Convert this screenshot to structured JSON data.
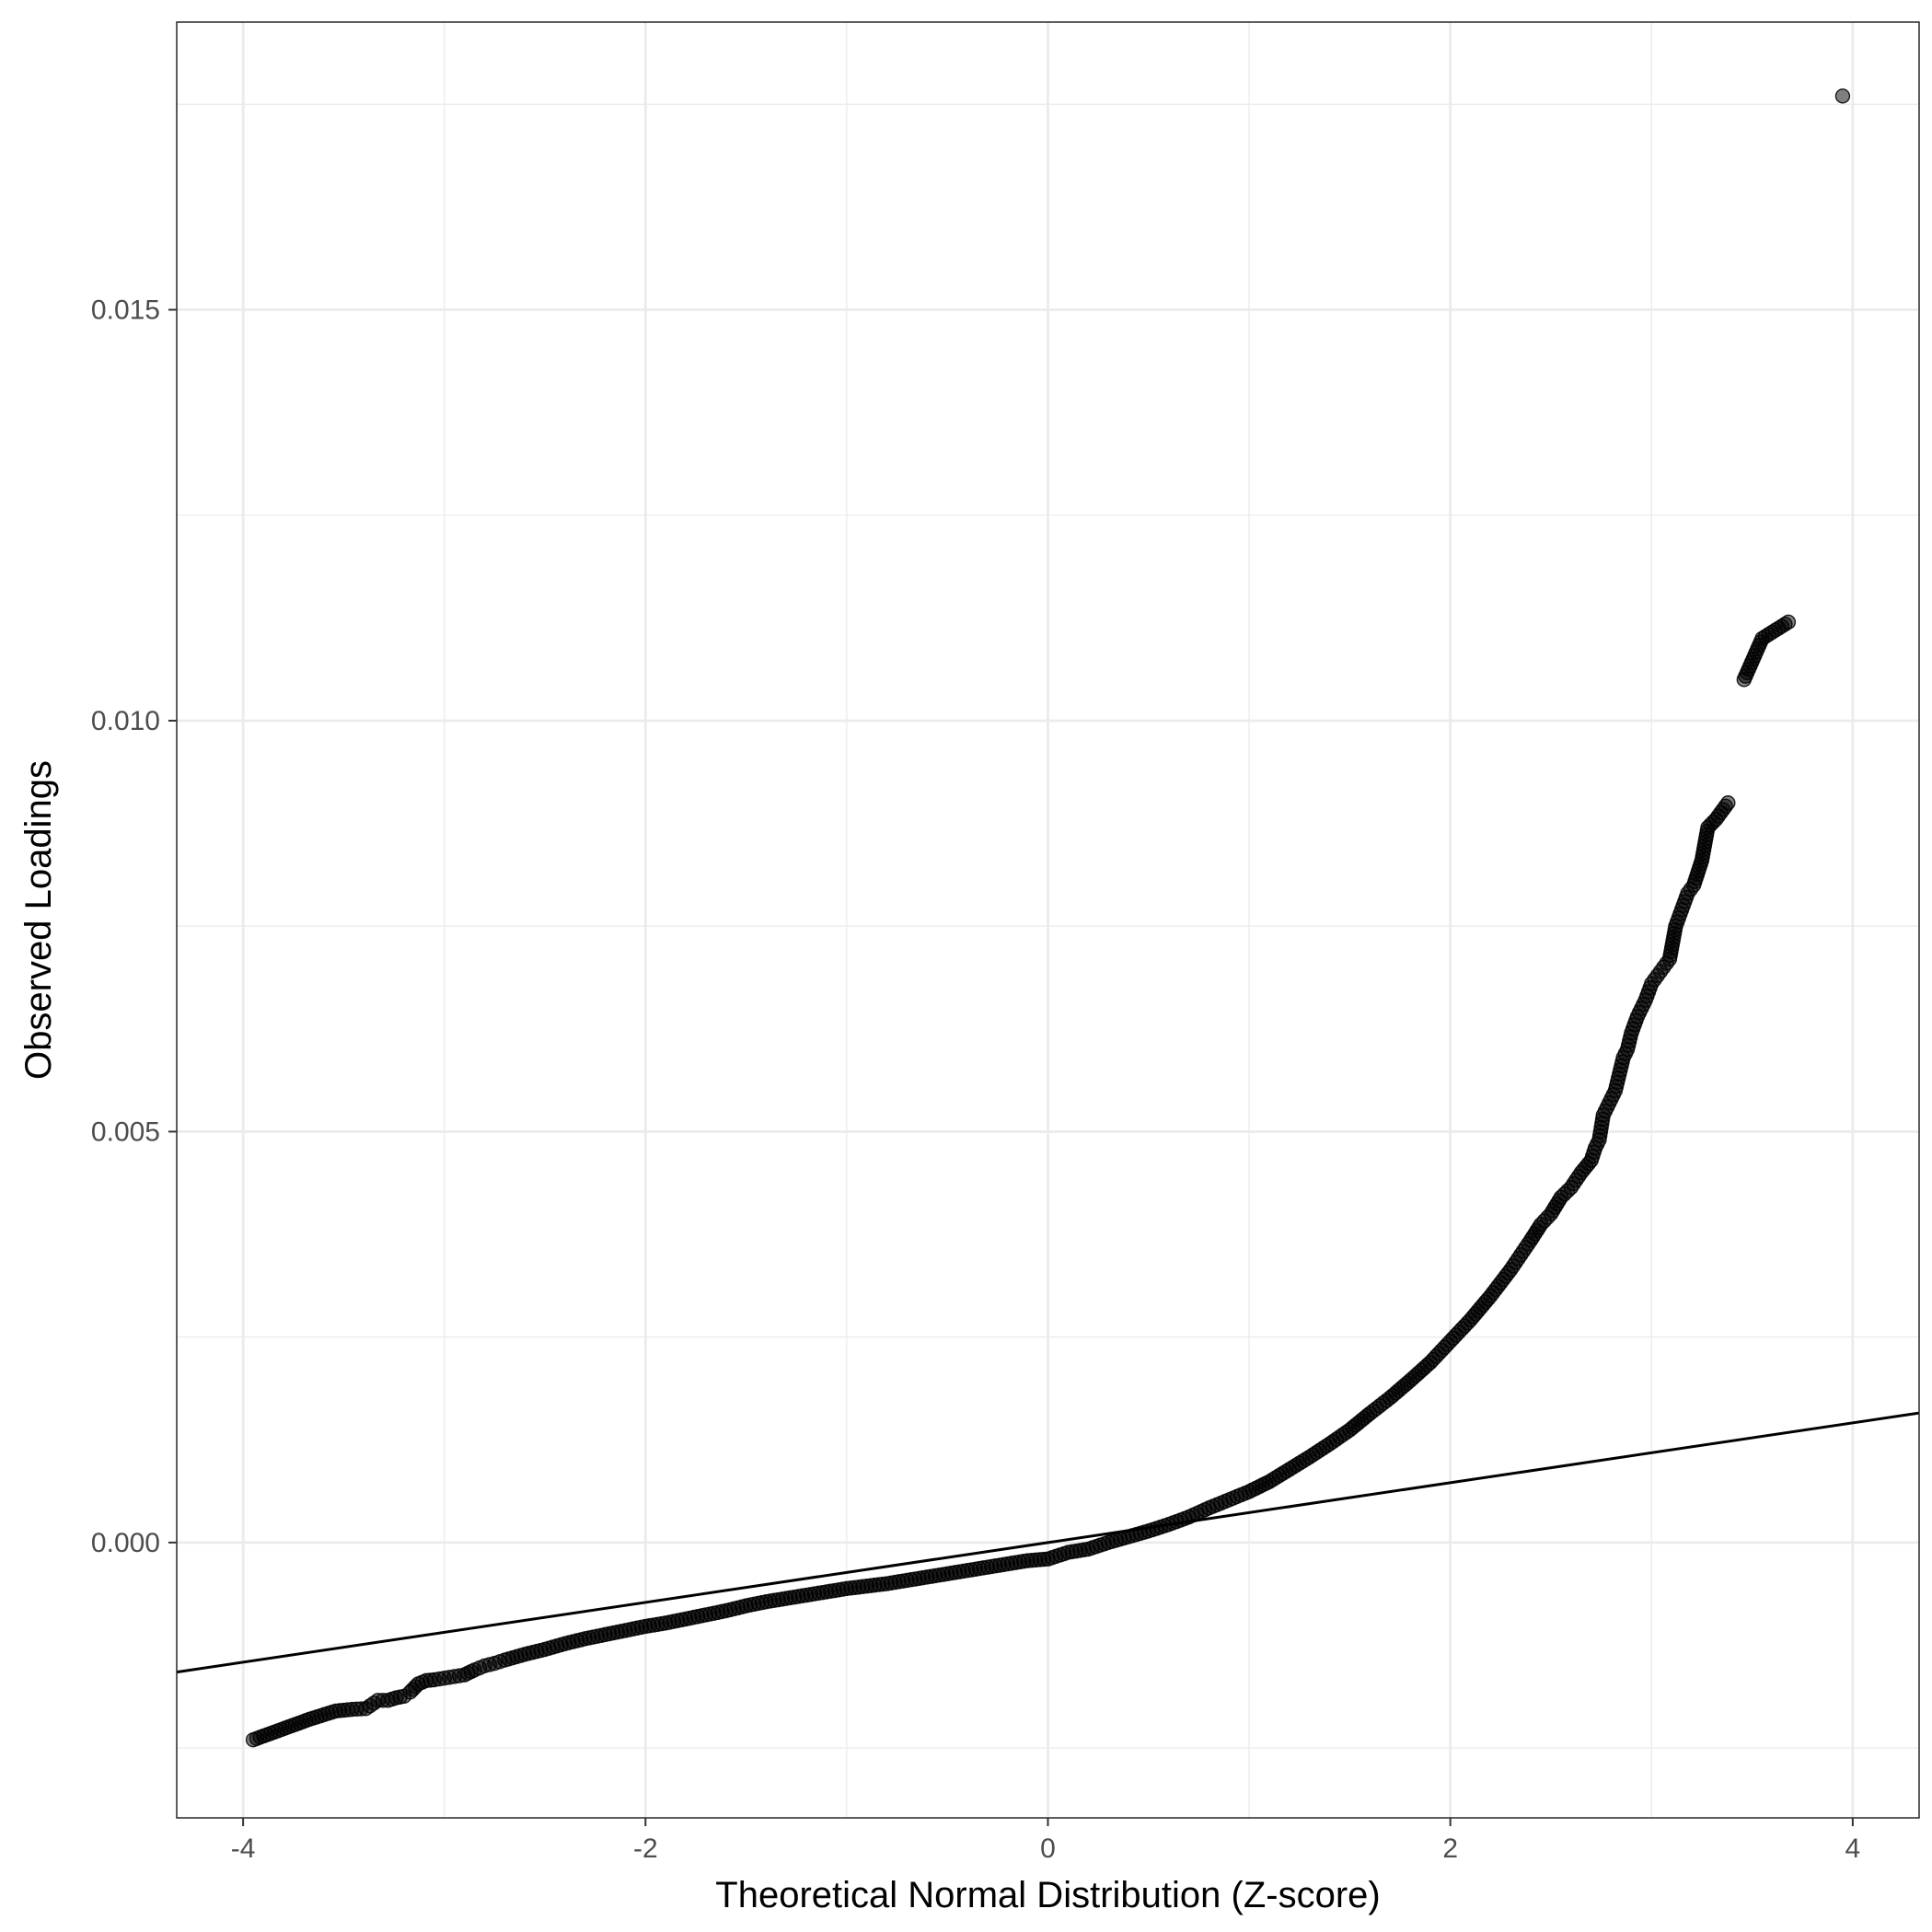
{
  "chart_data": {
    "type": "scatter",
    "title": "",
    "xlabel": "Theoretical Normal Distribution (Z-score)",
    "ylabel": "Observed Loadings",
    "xlim": [
      -4.33,
      4.33
    ],
    "ylim": [
      -0.00335,
      0.0185
    ],
    "x_ticks": [
      {
        "value": -4,
        "label": "-4"
      },
      {
        "value": -2,
        "label": "-2"
      },
      {
        "value": 0,
        "label": "0"
      },
      {
        "value": 2,
        "label": "2"
      },
      {
        "value": 4,
        "label": "4"
      }
    ],
    "y_ticks": [
      {
        "value": 0.0,
        "label": "0.000"
      },
      {
        "value": 0.005,
        "label": "0.005"
      },
      {
        "value": 0.01,
        "label": "0.010"
      },
      {
        "value": 0.015,
        "label": "0.015"
      }
    ],
    "grid": true,
    "legend": "none",
    "point_color": "#000000",
    "point_opacity": 0.5,
    "reference_line": {
      "slope": 0.000364,
      "intercept": 0.0,
      "color": "#000000"
    },
    "series": [
      {
        "points": [
          [
            -3.95,
            -0.0024
          ],
          [
            -3.67,
            -0.00215
          ],
          [
            -3.54,
            -0.00205
          ],
          [
            -3.46,
            -0.00203
          ],
          [
            -3.39,
            -0.00202
          ],
          [
            -3.33,
            -0.00192
          ],
          [
            -3.28,
            -0.00192
          ],
          [
            -3.24,
            -0.00189
          ],
          [
            -3.2,
            -0.00187
          ],
          [
            -3.17,
            -0.00182
          ],
          [
            -3.13,
            -0.00172
          ],
          [
            -3.09,
            -0.00168
          ],
          [
            -3.05,
            -0.00167
          ],
          [
            -3.0,
            -0.00165
          ],
          [
            -2.95,
            -0.00163
          ],
          [
            -2.9,
            -0.00161
          ],
          [
            -2.85,
            -0.00155
          ],
          [
            -2.8,
            -0.0015
          ],
          [
            -2.75,
            -0.00147
          ],
          [
            -2.7,
            -0.00143
          ],
          [
            -2.6,
            -0.00136
          ],
          [
            -2.5,
            -0.0013
          ],
          [
            -2.4,
            -0.00123
          ],
          [
            -2.3,
            -0.00117
          ],
          [
            -2.2,
            -0.00112
          ],
          [
            -2.1,
            -0.00107
          ],
          [
            -2.0,
            -0.00102
          ],
          [
            -1.9,
            -0.00098
          ],
          [
            -1.8,
            -0.00093
          ],
          [
            -1.7,
            -0.00088
          ],
          [
            -1.6,
            -0.00083
          ],
          [
            -1.5,
            -0.00077
          ],
          [
            -1.4,
            -0.00072
          ],
          [
            -1.3,
            -0.00068
          ],
          [
            -1.2,
            -0.00064
          ],
          [
            -1.1,
            -0.0006
          ],
          [
            -1.0,
            -0.00056
          ],
          [
            -0.9,
            -0.00053
          ],
          [
            -0.8,
            -0.0005
          ],
          [
            -0.7,
            -0.00046
          ],
          [
            -0.6,
            -0.00042
          ],
          [
            -0.5,
            -0.00038
          ],
          [
            -0.4,
            -0.00034
          ],
          [
            -0.3,
            -0.0003
          ],
          [
            -0.2,
            -0.00026
          ],
          [
            -0.1,
            -0.00022
          ],
          [
            0.0,
            -0.0002
          ],
          [
            0.1,
            -0.00012
          ],
          [
            0.2,
            -8e-05
          ],
          [
            0.3,
            -0.0
          ],
          [
            0.4,
            7e-05
          ],
          [
            0.5,
            0.00014
          ],
          [
            0.6,
            0.00022
          ],
          [
            0.7,
            0.00031
          ],
          [
            0.8,
            0.00042
          ],
          [
            0.9,
            0.00052
          ],
          [
            1.0,
            0.00062
          ],
          [
            1.1,
            0.00074
          ],
          [
            1.2,
            0.00089
          ],
          [
            1.3,
            0.00104
          ],
          [
            1.4,
            0.0012
          ],
          [
            1.5,
            0.00137
          ],
          [
            1.6,
            0.00157
          ],
          [
            1.7,
            0.00176
          ],
          [
            1.8,
            0.00197
          ],
          [
            1.9,
            0.00219
          ],
          [
            2.0,
            0.00245
          ],
          [
            2.1,
            0.00271
          ],
          [
            2.2,
            0.003
          ],
          [
            2.3,
            0.00332
          ],
          [
            2.35,
            0.0035
          ],
          [
            2.4,
            0.00368
          ],
          [
            2.45,
            0.00387
          ],
          [
            2.5,
            0.004
          ],
          [
            2.55,
            0.0042
          ],
          [
            2.6,
            0.00432
          ],
          [
            2.65,
            0.0045
          ],
          [
            2.7,
            0.00465
          ],
          [
            2.72,
            0.0048
          ],
          [
            2.74,
            0.0049
          ],
          [
            2.76,
            0.0052
          ],
          [
            2.78,
            0.0053
          ],
          [
            2.8,
            0.0054
          ],
          [
            2.82,
            0.0055
          ],
          [
            2.84,
            0.0057
          ],
          [
            2.86,
            0.0059
          ],
          [
            2.88,
            0.006
          ],
          [
            2.9,
            0.0062
          ],
          [
            2.93,
            0.0064
          ],
          [
            2.95,
            0.0065
          ],
          [
            2.97,
            0.0066
          ],
          [
            3.0,
            0.0068
          ],
          [
            3.03,
            0.0069
          ],
          [
            3.06,
            0.007
          ],
          [
            3.09,
            0.0071
          ],
          [
            3.12,
            0.0075
          ],
          [
            3.15,
            0.0077
          ],
          [
            3.18,
            0.0079
          ],
          [
            3.21,
            0.008
          ],
          [
            3.25,
            0.0083
          ],
          [
            3.28,
            0.0087
          ],
          [
            3.32,
            0.0088
          ],
          [
            3.38,
            0.009
          ],
          [
            3.46,
            0.0105
          ],
          [
            3.55,
            0.011
          ],
          [
            3.68,
            0.0112
          ],
          [
            3.95,
            0.0176
          ]
        ]
      }
    ]
  }
}
